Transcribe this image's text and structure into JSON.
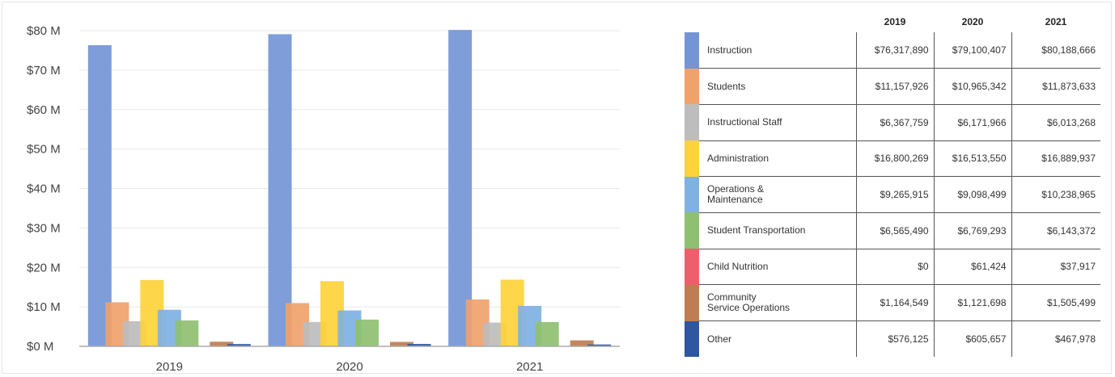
{
  "chart_data": {
    "type": "bar",
    "title": "",
    "xlabel": "",
    "ylabel": "",
    "categories": [
      "2019",
      "2020",
      "2021"
    ],
    "ylim": [
      0,
      80000000
    ],
    "yticks": [
      "$0 M",
      "$10 M",
      "$20 M",
      "$30 M",
      "$40 M",
      "$50 M",
      "$60 M",
      "$70 M",
      "$80 M"
    ],
    "grid": true,
    "legend": "table-right",
    "series": [
      {
        "name": "Instruction",
        "color": "#7395d6",
        "values": [
          76317890,
          79100407,
          80188666
        ],
        "display": [
          "$76,317,890",
          "$79,100,407",
          "$80,188,666"
        ]
      },
      {
        "name": "Students",
        "color": "#f0a26b",
        "values": [
          11157926,
          10965342,
          11873633
        ],
        "display": [
          "$11,157,926",
          "$10,965,342",
          "$11,873,633"
        ]
      },
      {
        "name": "Instructional Staff",
        "color": "#bdbdbd",
        "values": [
          6367759,
          6171966,
          6013268
        ],
        "display": [
          "$6,367,759",
          "$6,171,966",
          "$6,013,268"
        ]
      },
      {
        "name": "Administration",
        "color": "#fdd23a",
        "values": [
          16800269,
          16513550,
          16889937
        ],
        "display": [
          "$16,800,269",
          "$16,513,550",
          "$16,889,937"
        ]
      },
      {
        "name": "Operations &\nMaintenance",
        "color": "#7fb1e3",
        "values": [
          9265915,
          9098499,
          10238965
        ],
        "display": [
          "$9,265,915",
          "$9,098,499",
          "$10,238,965"
        ]
      },
      {
        "name": "Student Transportation",
        "color": "#8fc070",
        "values": [
          6565490,
          6769293,
          6143372
        ],
        "display": [
          "$6,565,490",
          "$6,769,293",
          "$6,143,372"
        ]
      },
      {
        "name": "Child Nutrition",
        "color": "#ee5f6c",
        "values": [
          0,
          61424,
          37917
        ],
        "display": [
          "$0",
          "$61,424",
          "$37,917"
        ]
      },
      {
        "name": "Community\nService Operations",
        "color": "#bf7d51",
        "values": [
          1164549,
          1121698,
          1505499
        ],
        "display": [
          "$1,164,549",
          "$1,121,698",
          "$1,505,499"
        ]
      },
      {
        "name": "Other",
        "color": "#2f56a0",
        "values": [
          576125,
          605657,
          467978
        ],
        "display": [
          "$576,125",
          "$605,657",
          "$467,978"
        ]
      }
    ]
  }
}
